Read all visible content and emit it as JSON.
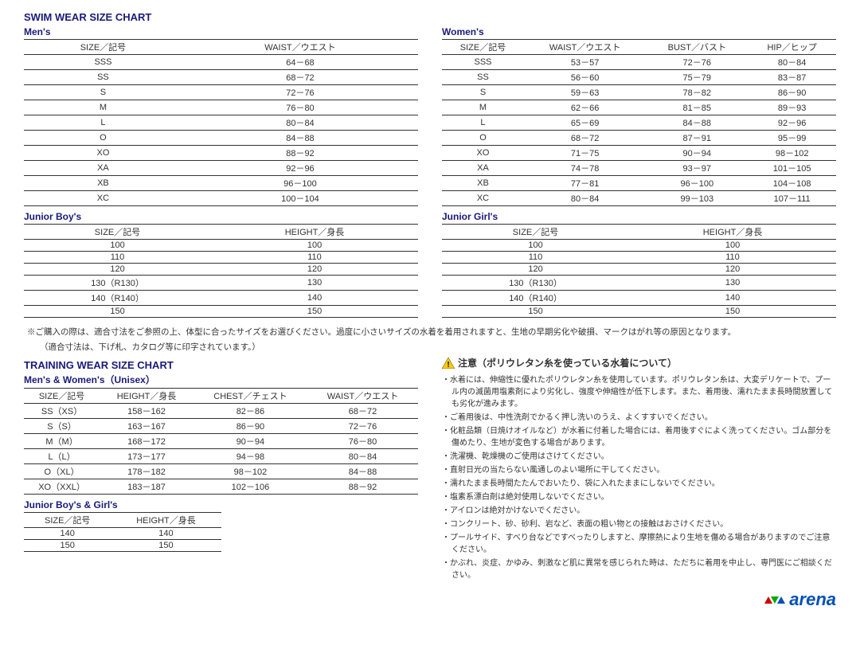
{
  "swim_title": "SWIM WEAR SIZE CHART",
  "mens": {
    "title": "Men's",
    "headers": [
      "SIZE／記号",
      "WAIST／ウエスト"
    ],
    "rows": [
      [
        "SSS",
        "64－68"
      ],
      [
        "SS",
        "68－72"
      ],
      [
        "S",
        "72－76"
      ],
      [
        "M",
        "76－80"
      ],
      [
        "L",
        "80－84"
      ],
      [
        "O",
        "84－88"
      ],
      [
        "XO",
        "88－92"
      ],
      [
        "XA",
        "92－96"
      ],
      [
        "XB",
        "96－100"
      ],
      [
        "XC",
        "100－104"
      ]
    ]
  },
  "womens": {
    "title": "Women's",
    "headers": [
      "SIZE／記号",
      "WAIST／ウエスト",
      "BUST／バスト",
      "HIP／ヒップ"
    ],
    "rows": [
      [
        "SSS",
        "53－57",
        "72－76",
        "80－84"
      ],
      [
        "SS",
        "56－60",
        "75－79",
        "83－87"
      ],
      [
        "S",
        "59－63",
        "78－82",
        "86－90"
      ],
      [
        "M",
        "62－66",
        "81－85",
        "89－93"
      ],
      [
        "L",
        "65－69",
        "84－88",
        "92－96"
      ],
      [
        "O",
        "68－72",
        "87－91",
        "95－99"
      ],
      [
        "XO",
        "71－75",
        "90－94",
        "98－102"
      ],
      [
        "XA",
        "74－78",
        "93－97",
        "101－105"
      ],
      [
        "XB",
        "77－81",
        "96－100",
        "104－108"
      ],
      [
        "XC",
        "80－84",
        "99－103",
        "107－111"
      ]
    ]
  },
  "junior_boys": {
    "title": "Junior Boy's",
    "headers": [
      "SIZE／記号",
      "HEIGHT／身長"
    ],
    "rows": [
      [
        "100",
        "100"
      ],
      [
        "110",
        "110"
      ],
      [
        "120",
        "120"
      ],
      [
        "130（R130）",
        "130"
      ],
      [
        "140（R140）",
        "140"
      ],
      [
        "150",
        "150"
      ]
    ]
  },
  "junior_girls": {
    "title": "Junior Girl's",
    "headers": [
      "SIZE／記号",
      "HEIGHT／身長"
    ],
    "rows": [
      [
        "100",
        "100"
      ],
      [
        "110",
        "110"
      ],
      [
        "120",
        "120"
      ],
      [
        "130（R130）",
        "130"
      ],
      [
        "140（R140）",
        "140"
      ],
      [
        "150",
        "150"
      ]
    ]
  },
  "swim_note1": "※ご購入の際は、適合寸法をご参照の上、体型に合ったサイズをお選びください。過度に小さいサイズの水着を着用されますと、生地の早期劣化や破損、マークはがれ等の原因となります。",
  "swim_note2": "（適合寸法は、下げ札、カタログ等に印字されています。）",
  "training_title": "TRAINING WEAR SIZE CHART",
  "unisex": {
    "title": "Men's & Women's（Unisex）",
    "headers": [
      "SIZE／記号",
      "HEIGHT／身長",
      "CHEST／チェスト",
      "WAIST／ウエスト"
    ],
    "rows": [
      [
        "SS（XS）",
        "158－162",
        "82－86",
        "68－72"
      ],
      [
        "S（S）",
        "163－167",
        "86－90",
        "72－76"
      ],
      [
        "M（M）",
        "168－172",
        "90－94",
        "76－80"
      ],
      [
        "L（L）",
        "173－177",
        "94－98",
        "80－84"
      ],
      [
        "O（XL）",
        "178－182",
        "98－102",
        "84－88"
      ],
      [
        "XO（XXL）",
        "183－187",
        "102－106",
        "88－92"
      ]
    ]
  },
  "junior_train": {
    "title": "Junior Boy's & Girl's",
    "headers": [
      "SIZE／記号",
      "HEIGHT／身長"
    ],
    "rows": [
      [
        "140",
        "140"
      ],
      [
        "150",
        "150"
      ]
    ]
  },
  "caution_title": "注意（ポリウレタン糸を使っている水着について）",
  "caution": [
    "水着には、伸縮性に優れたポリウレタン糸を使用しています。ポリウレタン糸は、大変デリケートで、プール内の滅菌用塩素剤により劣化し、強度や伸縮性が低下します。また、着用後、濡れたまま長時間放置しても劣化が進みます。",
    "ご着用後は、中性洗剤でかるく押し洗いのうえ、よくすすいでください。",
    "化粧品類（日焼けオイルなど）が水着に付着した場合には、着用後すぐによく洗ってください。ゴム部分を傷めたり、生地が変色する場合があります。",
    "洗濯機、乾燥機のご使用はさけてください。",
    "直射日光の当たらない風通しのよい場所に干してください。",
    "濡れたまま長時間たたんでおいたり、袋に入れたままにしないでください。",
    "塩素系漂白剤は絶対使用しないでください。",
    "アイロンは絶対かけないでください。",
    "コンクリート、砂、砂利、岩など、表面の粗い物との接触はおさけください。",
    "プールサイド、すべり台などですべったりしますと、摩擦熱により生地を傷める場合がありますのでご注意ください。",
    "かぶれ、炎症、かゆみ、刺激など肌に異常を感じられた時は、ただちに着用を中止し、専門医にご相談ください。"
  ],
  "logo_text": "arena"
}
